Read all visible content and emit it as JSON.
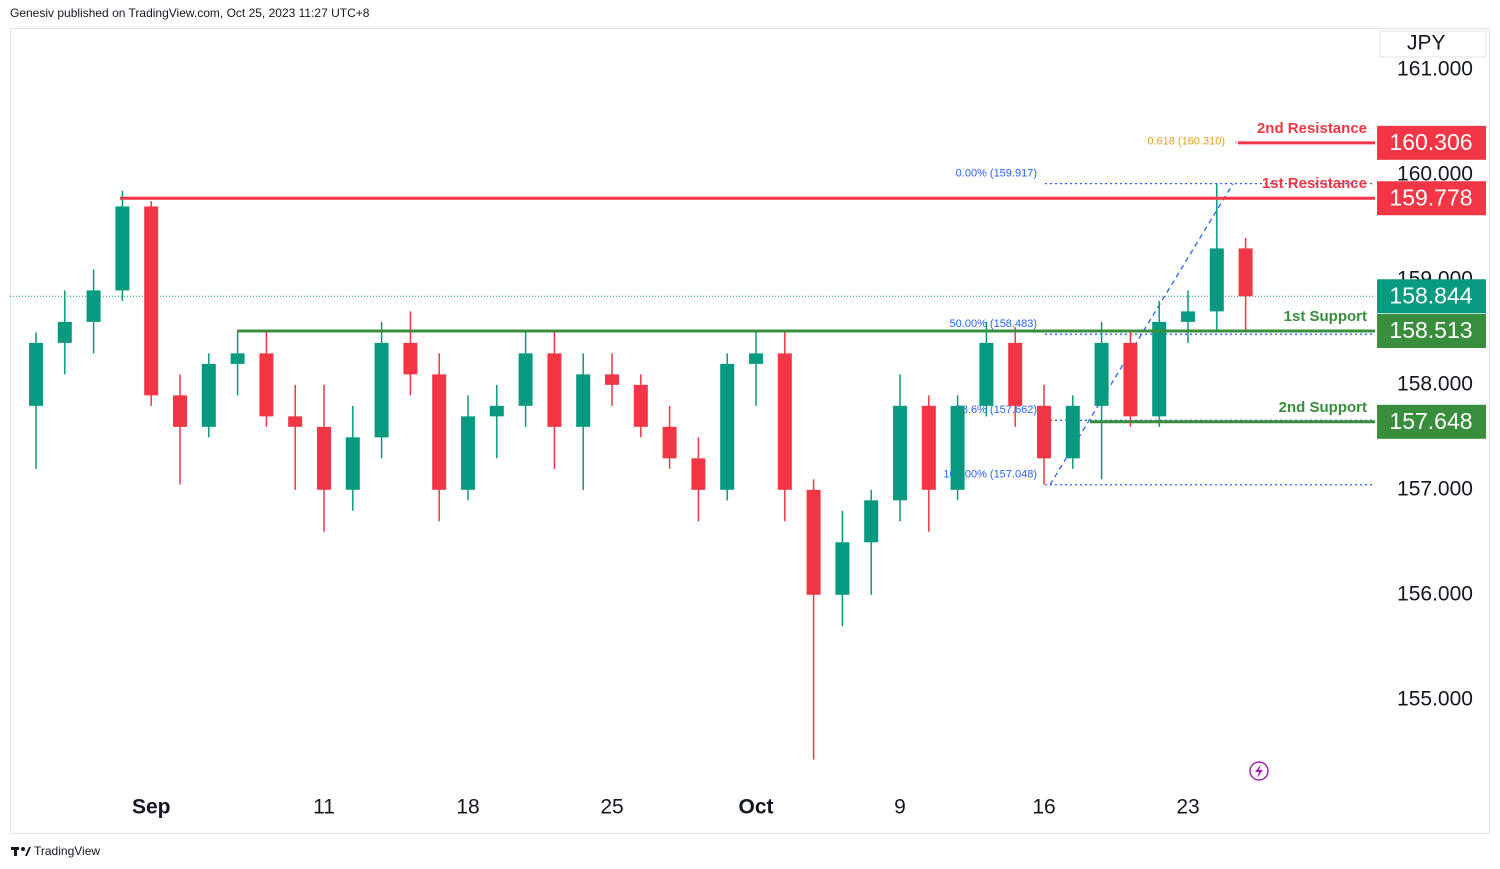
{
  "header": {
    "publisher": "Genesiv published on TradingView.com, Oct 25, 2023 11:27 UTC+8",
    "footer": "TradingView"
  },
  "chart_data": {
    "type": "candlestick",
    "currency": "JPY",
    "categories": [
      null,
      null,
      null,
      null,
      "Sep",
      null,
      null,
      null,
      null,
      null,
      "11",
      null,
      null,
      null,
      null,
      "18",
      null,
      null,
      null,
      null,
      "25",
      null,
      null,
      null,
      null,
      "Oct",
      null,
      null,
      null,
      null,
      "9",
      null,
      null,
      null,
      null,
      "16",
      null,
      null,
      null,
      null,
      "23",
      null,
      null
    ],
    "open": [
      157.8,
      158.4,
      158.6,
      158.9,
      159.7,
      157.9,
      157.6,
      158.2,
      158.3,
      157.7,
      157.6,
      157.0,
      157.5,
      158.4,
      158.1,
      157.0,
      157.7,
      157.8,
      158.3,
      157.6,
      158.1,
      158.0,
      157.6,
      157.3,
      157.0,
      158.2,
      158.3,
      157.0,
      156.0,
      156.5,
      156.9,
      157.8,
      157.0,
      157.8,
      158.4,
      157.8,
      157.3,
      157.8,
      158.4,
      157.7,
      158.6,
      158.7,
      159.3
    ],
    "high": [
      158.5,
      158.9,
      159.1,
      159.85,
      159.75,
      158.1,
      158.3,
      158.5,
      158.5,
      158.0,
      158.0,
      157.8,
      158.6,
      158.7,
      158.3,
      157.9,
      158.0,
      158.5,
      158.5,
      158.3,
      158.3,
      158.1,
      157.8,
      157.5,
      158.3,
      158.5,
      158.5,
      157.1,
      156.8,
      157.0,
      158.1,
      157.9,
      157.9,
      158.6,
      158.55,
      158.0,
      157.9,
      158.6,
      158.5,
      158.8,
      158.9,
      159.92,
      159.4
    ],
    "low": [
      157.2,
      158.1,
      158.3,
      158.8,
      157.8,
      157.05,
      157.5,
      157.9,
      157.6,
      157.0,
      156.6,
      156.8,
      157.3,
      157.9,
      156.7,
      156.9,
      157.3,
      157.6,
      157.2,
      157.0,
      157.8,
      157.5,
      157.2,
      156.7,
      156.9,
      157.8,
      156.7,
      154.43,
      155.7,
      156.0,
      156.7,
      156.6,
      156.9,
      157.7,
      157.6,
      157.05,
      157.2,
      157.1,
      157.6,
      157.6,
      158.4,
      158.5,
      158.5
    ],
    "close": [
      158.4,
      158.6,
      158.9,
      159.7,
      157.9,
      157.6,
      158.2,
      158.3,
      157.7,
      157.6,
      157.0,
      157.5,
      158.4,
      158.1,
      157.0,
      157.7,
      157.8,
      158.3,
      157.6,
      158.1,
      158.0,
      157.6,
      157.3,
      157.0,
      158.2,
      158.3,
      157.0,
      156.0,
      156.5,
      156.9,
      157.8,
      157.0,
      157.8,
      158.4,
      157.8,
      157.3,
      157.8,
      158.4,
      157.7,
      158.6,
      158.7,
      159.3,
      158.844
    ],
    "up_color": "#089981",
    "down_color": "#f23645",
    "ylim": [
      154.14,
      161.4
    ],
    "yticks": [
      {
        "value": 155,
        "label": "155.000"
      },
      {
        "value": 156,
        "label": "156.000"
      },
      {
        "value": 157,
        "label": "157.000"
      },
      {
        "value": 158,
        "label": "158.000"
      },
      {
        "value": 159,
        "label": "159.000"
      },
      {
        "value": 160,
        "label": "160.000"
      },
      {
        "value": 161,
        "label": "161.000"
      }
    ],
    "last_price": {
      "value": 158.844,
      "color": "#089981"
    },
    "levels": [
      {
        "name": "2nd Resistance",
        "value": 160.306,
        "color": "#f23645"
      },
      {
        "name": "1st Resistance",
        "value": 159.778,
        "color": "#f23645"
      },
      {
        "name": "1st Support",
        "value": 158.513,
        "color": "#388e3c"
      },
      {
        "name": "2nd Support",
        "value": 157.648,
        "color": "#388e3c"
      }
    ],
    "fib_levels": [
      {
        "label": "0.00% (159.917)",
        "value": 159.917
      },
      {
        "label": "50.00% (158.483)",
        "value": 158.483
      },
      {
        "label": "78.6% (157.662)",
        "value": 157.662
      },
      {
        "label": "100.00% (157.048)",
        "value": 157.048
      }
    ],
    "fib_extension": {
      "label": "0.618 (160.310)",
      "value": 160.31,
      "color": "#e0a020"
    },
    "fib_color": "#2962ff"
  }
}
